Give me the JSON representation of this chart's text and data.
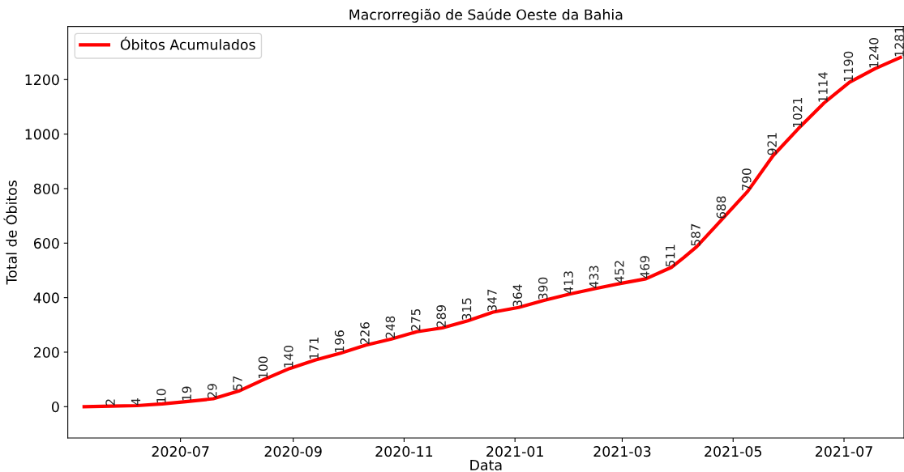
{
  "chart_data": {
    "type": "line",
    "title": "Macrorregião de Saúde Oeste da Bahia",
    "xlabel": "Data",
    "ylabel": "Total de Óbitos",
    "x": [
      "2020-05-09",
      "2020-05-24",
      "2020-06-07",
      "2020-06-21",
      "2020-07-05",
      "2020-07-19",
      "2020-08-02",
      "2020-08-16",
      "2020-08-30",
      "2020-09-13",
      "2020-09-27",
      "2020-10-11",
      "2020-10-25",
      "2020-11-08",
      "2020-11-22",
      "2020-12-06",
      "2020-12-20",
      "2021-01-03",
      "2021-01-17",
      "2021-01-31",
      "2021-02-14",
      "2021-02-28",
      "2021-03-14",
      "2021-03-28",
      "2021-04-04",
      "2021-04-11",
      "2021-04-25",
      "2021-05-09",
      "2021-05-23",
      "2021-06-06",
      "2021-06-20",
      "2021-07-04",
      "2021-07-18",
      "2021-08-01"
    ],
    "series": [
      {
        "name": "Óbitos Acumulados",
        "color": "#ff0000",
        "values": [
          0,
          2,
          4,
          10,
          19,
          29,
          57,
          100,
          140,
          171,
          196,
          226,
          248,
          275,
          289,
          315,
          347,
          364,
          390,
          413,
          433,
          452,
          469,
          511,
          548,
          587,
          688,
          790,
          921,
          1021,
          1114,
          1190,
          1240,
          1281
        ],
        "value_labels": [
          null,
          "2",
          "4",
          "10",
          "19",
          "29",
          "57",
          "100",
          "140",
          "171",
          "196",
          "226",
          "248",
          "275",
          "289",
          "315",
          "347",
          "364",
          "390",
          "413",
          "433",
          "452",
          "469",
          "511",
          null,
          "587",
          "688",
          "790",
          "921",
          "1021",
          "1114",
          "1190",
          "1240",
          "1281"
        ]
      }
    ],
    "xlim": [
      "2020-04-30",
      "2021-08-03"
    ],
    "xticks": [
      {
        "value": "2020-07-01",
        "label": "2020-07"
      },
      {
        "value": "2020-09-01",
        "label": "2020-09"
      },
      {
        "value": "2020-11-01",
        "label": "2020-11"
      },
      {
        "value": "2021-01-01",
        "label": "2021-01"
      },
      {
        "value": "2021-03-01",
        "label": "2021-03"
      },
      {
        "value": "2021-05-01",
        "label": "2021-05"
      },
      {
        "value": "2021-07-01",
        "label": "2021-07"
      }
    ],
    "ylim": [
      -115,
      1395
    ],
    "yticks": [
      0,
      200,
      400,
      600,
      800,
      1000,
      1200
    ],
    "grid": false,
    "legend": "top left",
    "marker": "none",
    "line_style": "solid"
  }
}
